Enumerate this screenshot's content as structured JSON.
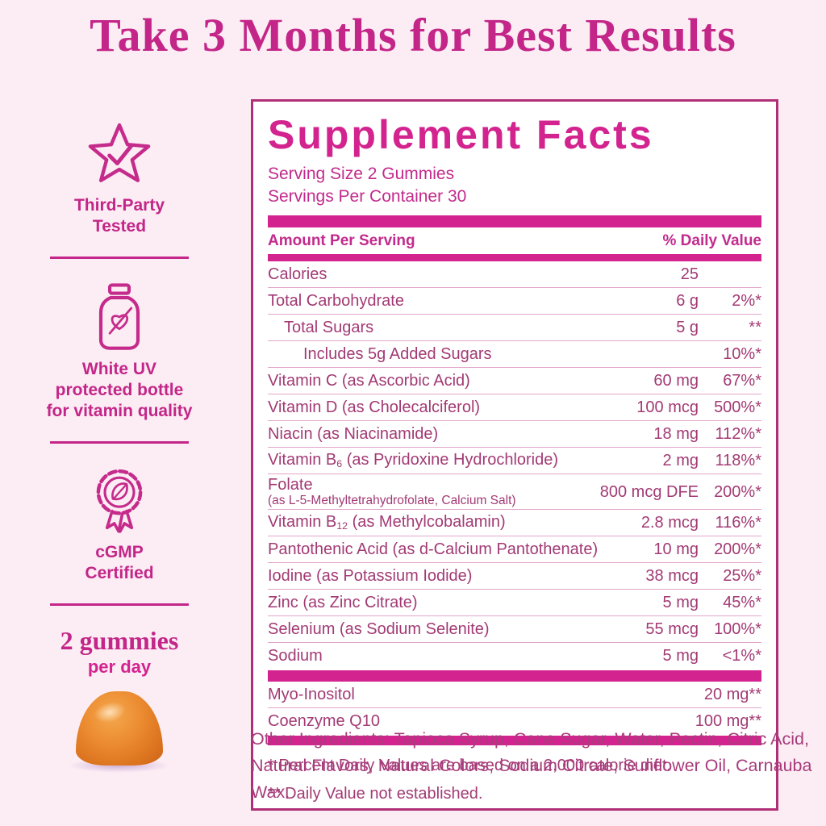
{
  "headline": "Take 3 Months for Best Results",
  "colors": {
    "background": "#fcedf4",
    "accent_magenta": "#d3238f",
    "deep_magenta": "#b03078",
    "body_text": "#a23a74",
    "gummy_orange": "#ec8c31"
  },
  "badges": [
    {
      "icon": "star-check-icon",
      "lines": [
        "Third-Party",
        "Tested"
      ]
    },
    {
      "icon": "bottle-icon",
      "lines": [
        "White UV",
        "protected bottle",
        "for vitamin quality"
      ]
    },
    {
      "icon": "rosette-leaf-icon",
      "lines": [
        "cGMP",
        "Certified"
      ]
    }
  ],
  "dosage": {
    "amount": "2 gummies",
    "frequency": "per day"
  },
  "panel": {
    "title": "Supplement Facts",
    "serving_size": "Serving Size 2 Gummies",
    "servings_per_container": "Servings Per Container 30",
    "columns": {
      "left": "Amount Per Serving",
      "right": "% Daily Value"
    },
    "rows": [
      {
        "label": "Calories",
        "amount": "25",
        "dv": "",
        "indent": 0
      },
      {
        "label": "Total Carbohydrate",
        "amount": "6 g",
        "dv": "2%*",
        "indent": 0
      },
      {
        "label": "Total Sugars",
        "amount": "5 g",
        "dv": "**",
        "indent": 1
      },
      {
        "label": "Includes 5g Added Sugars",
        "amount": "",
        "dv": "10%*",
        "indent": 2
      },
      {
        "label": "Vitamin C (as Ascorbic Acid)",
        "amount": "60 mg",
        "dv": "67%*",
        "indent": 0
      },
      {
        "label": "Vitamin D (as Cholecalciferol)",
        "amount": "100 mcg",
        "dv": "500%*",
        "indent": 0
      },
      {
        "label": "Niacin (as Niacinamide)",
        "amount": "18 mg",
        "dv": "112%*",
        "indent": 0
      },
      {
        "label": "Vitamin B_{6} (as Pyridoxine Hydrochloride)",
        "amount": "2 mg",
        "dv": "118%*",
        "indent": 0
      },
      {
        "label": "Folate",
        "note": "(as L-5-Methyltetrahydrofolate, Calcium Salt)",
        "amount": "800 mcg DFE",
        "dv": "200%*",
        "indent": 0
      },
      {
        "label": "Vitamin B_{12} (as Methylcobalamin)",
        "amount": "2.8 mcg",
        "dv": "116%*",
        "indent": 0
      },
      {
        "label": "Pantothenic Acid (as d-Calcium Pantothenate)",
        "amount": "10 mg",
        "dv": "200%*",
        "indent": 0
      },
      {
        "label": "Iodine (as Potassium Iodide)",
        "amount": "38 mcg",
        "dv": "25%*",
        "indent": 0
      },
      {
        "label": "Zinc (as Zinc Citrate)",
        "amount": "5 mg",
        "dv": "45%*",
        "indent": 0
      },
      {
        "label": "Selenium (as Sodium Selenite)",
        "amount": "55 mcg",
        "dv": "100%*",
        "indent": 0
      },
      {
        "label": "Sodium",
        "amount": "5 mg",
        "dv": "<1%*",
        "indent": 0
      }
    ],
    "secondary_rows": [
      {
        "label": "Myo-Inositol",
        "amount": "",
        "dv": "20 mg**",
        "indent": 0
      },
      {
        "label": "Coenzyme Q10",
        "amount": "",
        "dv": "100 mg**",
        "indent": 0
      }
    ],
    "footnotes": [
      "* Percent Daily Values are based on a 2,000 calorie diet.",
      "** Daily Value not established."
    ]
  },
  "other_ingredients": "Other Ingredients: Tapioca Syrup, Cane Sugar, Water, Pectin, Citric Acid, Natural Flavors, Natural Colors, Sodium Citrate, Sunflower Oil, Carnauba Wax."
}
